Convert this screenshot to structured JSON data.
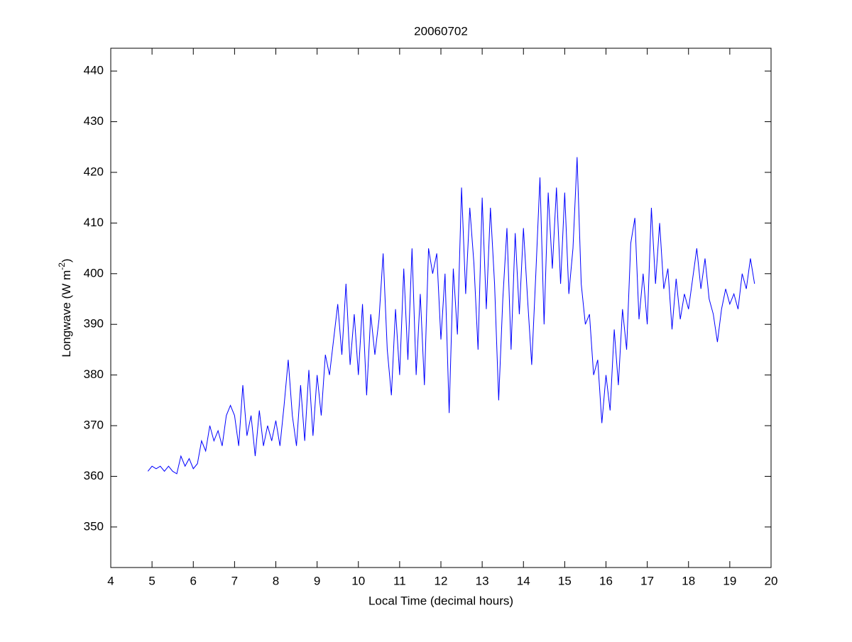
{
  "chart_data": {
    "type": "line",
    "title": "20060702",
    "xlabel": "Local Time (decimal hours)",
    "ylabel": [
      "Longwave (W m",
      "-2",
      ")"
    ],
    "x": [
      4.9,
      5.0,
      5.1,
      5.2,
      5.3,
      5.4,
      5.5,
      5.6,
      5.7,
      5.8,
      5.9,
      6.0,
      6.1,
      6.2,
      6.3,
      6.4,
      6.5,
      6.6,
      6.7,
      6.8,
      6.9,
      7.0,
      7.1,
      7.2,
      7.3,
      7.4,
      7.5,
      7.6,
      7.7,
      7.8,
      7.9,
      8.0,
      8.1,
      8.2,
      8.3,
      8.4,
      8.5,
      8.6,
      8.7,
      8.8,
      8.9,
      9.0,
      9.1,
      9.2,
      9.3,
      9.4,
      9.5,
      9.6,
      9.7,
      9.8,
      9.9,
      10.0,
      10.1,
      10.2,
      10.3,
      10.4,
      10.5,
      10.6,
      10.7,
      10.8,
      10.9,
      11.0,
      11.1,
      11.2,
      11.3,
      11.4,
      11.5,
      11.6,
      11.7,
      11.8,
      11.9,
      12.0,
      12.1,
      12.2,
      12.3,
      12.4,
      12.5,
      12.6,
      12.7,
      12.8,
      12.9,
      13.0,
      13.1,
      13.2,
      13.3,
      13.4,
      13.5,
      13.6,
      13.7,
      13.8,
      13.9,
      14.0,
      14.1,
      14.2,
      14.3,
      14.4,
      14.5,
      14.6,
      14.7,
      14.8,
      14.9,
      15.0,
      15.1,
      15.2,
      15.3,
      15.4,
      15.5,
      15.6,
      15.7,
      15.8,
      15.9,
      16.0,
      16.1,
      16.2,
      16.3,
      16.4,
      16.5,
      16.6,
      16.7,
      16.8,
      16.9,
      17.0,
      17.1,
      17.2,
      17.3,
      17.4,
      17.5,
      17.6,
      17.7,
      17.8,
      17.9,
      18.0,
      18.1,
      18.2,
      18.3,
      18.4,
      18.5,
      18.6,
      18.7,
      18.8,
      18.9,
      19.0,
      19.1,
      19.2,
      19.3,
      19.4,
      19.5,
      19.6
    ],
    "series": [
      {
        "color": "#0000ff",
        "values": [
          361,
          362,
          361.5,
          362,
          361,
          362,
          361,
          360.5,
          364,
          362,
          363.5,
          361.5,
          362.5,
          367,
          365,
          370,
          367,
          369,
          366,
          372,
          374,
          372,
          366,
          378,
          368,
          372,
          364,
          373,
          366,
          370,
          367,
          371,
          366,
          374,
          383,
          372,
          366,
          378,
          367,
          381,
          368,
          380,
          372,
          384,
          380,
          387,
          394,
          384,
          398,
          382,
          392,
          380,
          394,
          376,
          392,
          384,
          391,
          404,
          385,
          376,
          393,
          380,
          401,
          383,
          405,
          380,
          396,
          378,
          405,
          400,
          404,
          387,
          400,
          372.5,
          401,
          388,
          417,
          396,
          413,
          402,
          385,
          415,
          393,
          413,
          398,
          375,
          395,
          409,
          385,
          408,
          392,
          409,
          395,
          382,
          400,
          419,
          390,
          416,
          401,
          417,
          398,
          416,
          396,
          405,
          423,
          398,
          390,
          392,
          380,
          383,
          370.5,
          380,
          373,
          389,
          378,
          393,
          385,
          406,
          411,
          391,
          400,
          390,
          413,
          398,
          410,
          397,
          401,
          389,
          399,
          391,
          396,
          393,
          399,
          405,
          397,
          403,
          395,
          392,
          386.5,
          393,
          397,
          394,
          396,
          393,
          400,
          397,
          403,
          398
        ]
      }
    ],
    "xlim": [
      4,
      20
    ],
    "ylim": [
      342,
      444.5
    ],
    "xticks": [
      4,
      5,
      6,
      7,
      8,
      9,
      10,
      11,
      12,
      13,
      14,
      15,
      16,
      17,
      18,
      19,
      20
    ],
    "yticks": [
      350,
      360,
      370,
      380,
      390,
      400,
      410,
      420,
      430,
      440
    ]
  }
}
